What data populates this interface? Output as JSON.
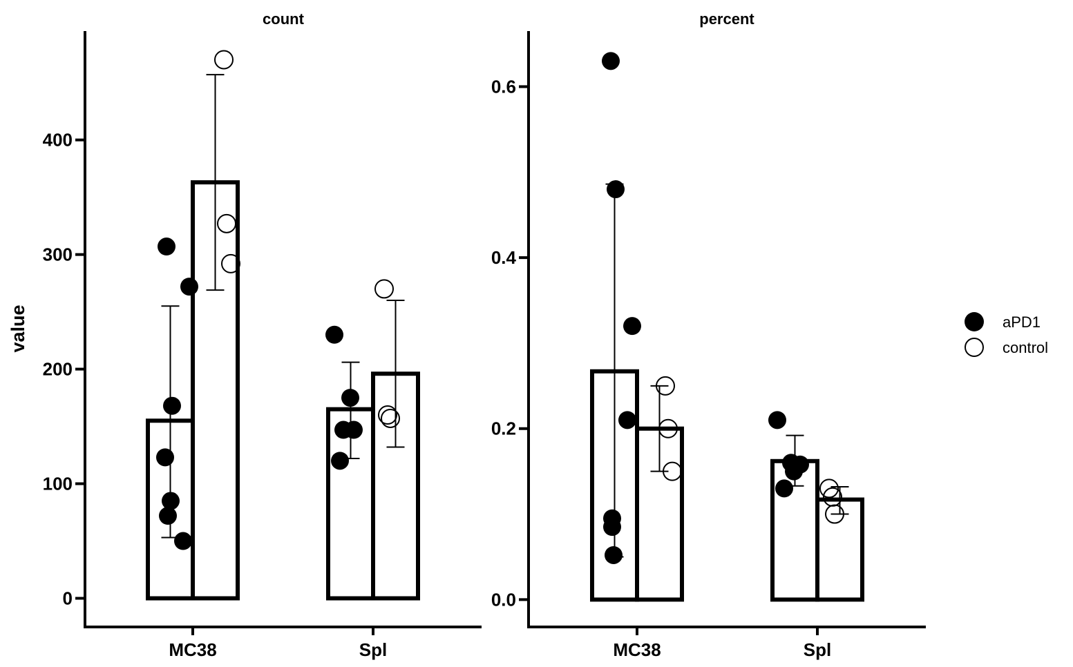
{
  "chart_data": [
    {
      "type": "bar",
      "title": "count",
      "ylabel": "value",
      "categories": [
        "MC38",
        "Spl"
      ],
      "yticks": [
        0,
        100,
        200,
        300,
        400
      ],
      "ylim": [
        -25,
        495
      ],
      "series": [
        {
          "name": "aPD1",
          "values": [
            155,
            165
          ],
          "error_low": [
            53,
            122
          ],
          "error_high": [
            255,
            206
          ],
          "points": [
            [
              307,
              272,
              168,
              123,
              85,
              72,
              50
            ],
            [
              230,
              175,
              147,
              147,
              120
            ]
          ]
        },
        {
          "name": "control",
          "values": [
            363,
            196
          ],
          "error_low": [
            269,
            132
          ],
          "error_high": [
            457,
            260
          ],
          "points": [
            [
              470,
              327,
              292
            ],
            [
              270,
              160,
              157
            ]
          ]
        }
      ]
    },
    {
      "type": "bar",
      "title": "percent",
      "ylabel": "",
      "categories": [
        "MC38",
        "Spl"
      ],
      "yticks": [
        0.0,
        0.2,
        0.4,
        0.6
      ],
      "ytick_labels": [
        "0.0",
        "0.2",
        "0.4",
        "0.6"
      ],
      "ylim": [
        -0.032,
        0.665
      ],
      "series": [
        {
          "name": "aPD1",
          "values": [
            0.267,
            0.162
          ],
          "error_low": [
            0.05,
            0.133
          ],
          "error_high": [
            0.486,
            0.192
          ],
          "points": [
            [
              0.63,
              0.48,
              0.32,
              0.21,
              0.095,
              0.085,
              0.052
            ],
            [
              0.21,
              0.16,
              0.158,
              0.15,
              0.13
            ]
          ]
        },
        {
          "name": "control",
          "values": [
            0.2,
            0.117
          ],
          "error_low": [
            0.15,
            0.1
          ],
          "error_high": [
            0.25,
            0.132
          ],
          "points": [
            [
              0.25,
              0.2,
              0.15
            ],
            [
              0.13,
              0.12,
              0.1
            ]
          ]
        }
      ]
    }
  ],
  "legend": {
    "position": "right",
    "items": [
      {
        "label": "aPD1",
        "marker": "filled-circle",
        "color": "#000000"
      },
      {
        "label": "control",
        "marker": "open-circle",
        "color": "#000000"
      }
    ]
  }
}
